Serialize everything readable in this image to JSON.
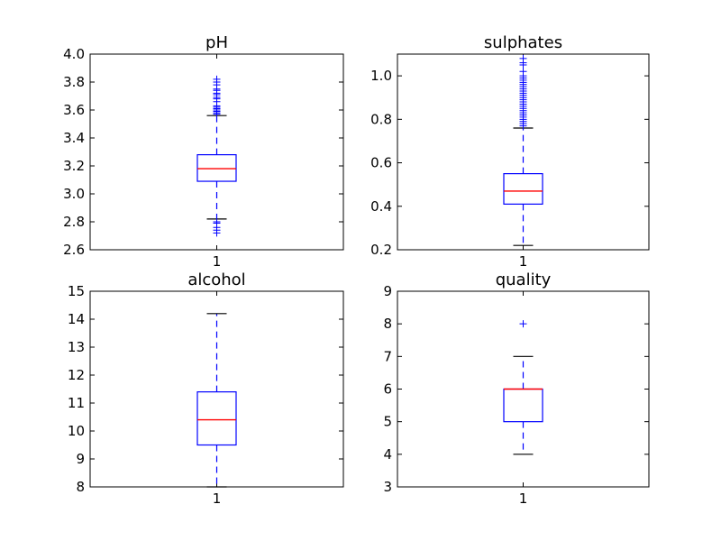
{
  "chart_data": [
    {
      "type": "box",
      "title": "pH",
      "categories": [
        "1"
      ],
      "ylim": [
        2.6,
        4.0
      ],
      "yticks": [
        "2.6",
        "2.8",
        "3.0",
        "3.2",
        "3.4",
        "3.6",
        "3.8",
        "4.0"
      ],
      "ytick_values": [
        2.6,
        2.8,
        3.0,
        3.2,
        3.4,
        3.6,
        3.8,
        4.0
      ],
      "box": {
        "whisker_low": 2.82,
        "q1": 3.09,
        "median": 3.18,
        "q3": 3.28,
        "whisker_high": 3.56
      },
      "outliers": [
        2.72,
        2.74,
        2.76,
        2.79,
        2.8,
        3.57,
        3.58,
        3.59,
        3.6,
        3.61,
        3.62,
        3.63,
        3.66,
        3.68,
        3.69,
        3.71,
        3.72,
        3.74,
        3.75,
        3.78,
        3.8,
        3.82
      ]
    },
    {
      "type": "box",
      "title": "sulphates",
      "categories": [
        "1"
      ],
      "ylim": [
        0.2,
        1.1
      ],
      "yticks": [
        "0.2",
        "0.4",
        "0.6",
        "0.8",
        "1.0"
      ],
      "ytick_values": [
        0.2,
        0.4,
        0.6,
        0.8,
        1.0
      ],
      "box": {
        "whisker_low": 0.22,
        "q1": 0.41,
        "median": 0.47,
        "q3": 0.55,
        "whisker_high": 0.76
      },
      "outliers": [
        0.77,
        0.78,
        0.79,
        0.8,
        0.81,
        0.82,
        0.83,
        0.84,
        0.85,
        0.86,
        0.87,
        0.88,
        0.89,
        0.9,
        0.91,
        0.92,
        0.93,
        0.94,
        0.95,
        0.96,
        0.97,
        0.98,
        0.99,
        1.0,
        1.02,
        1.05,
        1.06,
        1.08
      ]
    },
    {
      "type": "box",
      "title": "alcohol",
      "categories": [
        "1"
      ],
      "ylim": [
        8,
        15
      ],
      "yticks": [
        "8",
        "9",
        "10",
        "11",
        "12",
        "13",
        "14",
        "15"
      ],
      "ytick_values": [
        8,
        9,
        10,
        11,
        12,
        13,
        14,
        15
      ],
      "box": {
        "whisker_low": 8.0,
        "q1": 9.5,
        "median": 10.4,
        "q3": 11.4,
        "whisker_high": 14.2
      },
      "outliers": []
    },
    {
      "type": "box",
      "title": "quality",
      "categories": [
        "1"
      ],
      "ylim": [
        3,
        9
      ],
      "yticks": [
        "3",
        "4",
        "5",
        "6",
        "7",
        "8",
        "9"
      ],
      "ytick_values": [
        3,
        4,
        5,
        6,
        7,
        8,
        9
      ],
      "box": {
        "whisker_low": 4,
        "q1": 5,
        "median": 6,
        "q3": 6,
        "whisker_high": 7
      },
      "outliers": [
        8
      ]
    }
  ],
  "colors": {
    "box": "#0000ff",
    "median": "#ff0000",
    "whisker_cap": "#000000",
    "outlier": "#0000ff",
    "axes": "#000000"
  }
}
